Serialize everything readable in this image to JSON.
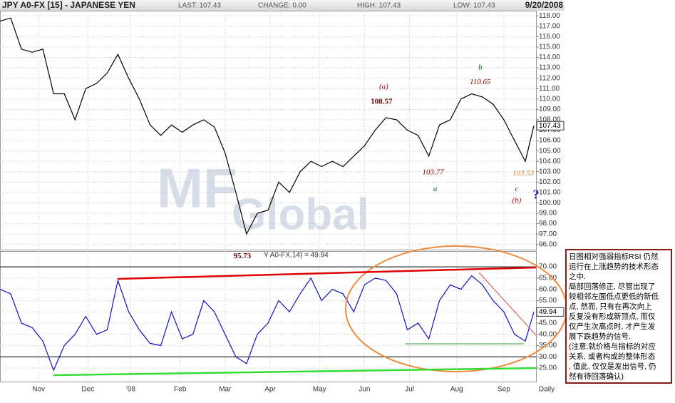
{
  "header": {
    "symbol": "JPY A0-FX [15] - JAPANESE YEN",
    "last": "LAST: 107.43",
    "change": "CHANGE: 0.00",
    "high": "HIGH: 107.43",
    "low": "LOW: 107.43",
    "date": "9/20/2008"
  },
  "note": [
    "日图相对强弱指标RSI 仍然",
    "运行在上涨趋势的技术形态",
    "之中.",
    "局部回落修正, 尽管出现了",
    "较相邻左面低点更低的新低",
    "点, 然而, 只有在再次向上",
    "反复没有形成新顶点, 而仅",
    "仅产生次高点时, 才产生发",
    "展下跌趋势的信号.",
    "(注意:就价格与指标的对应",
    "关系, 或者构成的整体形态",
    ", 值此, 仅仅是发出信号, 仍",
    "然有待回落确认)"
  ],
  "chart_data": [
    {
      "type": "line",
      "color": "#000000",
      "grid": true,
      "x": [
        0,
        5,
        10,
        15,
        20,
        25,
        30,
        35,
        40,
        45,
        50,
        55,
        60,
        65,
        70,
        75,
        80,
        85,
        90,
        95,
        100,
        105,
        110,
        115,
        120,
        125,
        130,
        135,
        140,
        145,
        150,
        155,
        160,
        165,
        170,
        175,
        180,
        185,
        190,
        195,
        200,
        205,
        210,
        215,
        220,
        225,
        230,
        235,
        240,
        245,
        249
      ],
      "values": [
        117.5,
        117.8,
        114.8,
        114.5,
        114.8,
        110.5,
        110.5,
        108,
        111,
        111.5,
        112.5,
        114.3,
        112,
        110,
        107.5,
        106.5,
        107.5,
        106.8,
        107.5,
        108,
        107.3,
        104.8,
        101,
        97,
        99,
        99.3,
        102,
        101,
        103,
        104,
        103.5,
        104,
        103.5,
        104.5,
        105.5,
        107,
        108.2,
        108,
        107,
        106.5,
        104.5,
        107.5,
        108,
        110,
        110.5,
        110.2,
        109.5,
        108,
        106,
        104,
        107.43
      ],
      "xlim": [
        0,
        250
      ],
      "ylim": [
        95.5,
        118.5
      ],
      "yticks": [
        {
          "value": 96,
          "label": "96.00"
        },
        {
          "value": 97,
          "label": "97.00"
        },
        {
          "value": 98,
          "label": "98.00"
        },
        {
          "value": 99,
          "label": "99.00"
        },
        {
          "value": 100,
          "label": "100.00"
        },
        {
          "value": 101,
          "label": "101.00"
        },
        {
          "value": 102,
          "label": "102.00"
        },
        {
          "value": 103,
          "label": "103.00"
        },
        {
          "value": 104,
          "label": "104.00"
        },
        {
          "value": 105,
          "label": "105.00"
        },
        {
          "value": 106,
          "label": "106.00"
        },
        {
          "value": 107,
          "label": "107.00"
        },
        {
          "value": 108,
          "label": "108.00"
        },
        {
          "value": 109,
          "label": "109.00"
        },
        {
          "value": 110,
          "label": "110.00"
        },
        {
          "value": 111,
          "label": "111.00"
        },
        {
          "value": 112,
          "label": "112.00"
        },
        {
          "value": 113,
          "label": "113.00"
        },
        {
          "value": 114,
          "label": "114.00"
        },
        {
          "value": 115,
          "label": "115.00"
        },
        {
          "value": 116,
          "label": "116.00"
        },
        {
          "value": 117,
          "label": "117.00"
        },
        {
          "value": 118,
          "label": "118.00"
        }
      ],
      "annotations": [
        {
          "text": "(a)",
          "x": 179,
          "y": 111.15,
          "color": "#8b0000",
          "style": "italic"
        },
        {
          "text": "108.57",
          "x": 178,
          "y": 109.7,
          "color": "#6b0000",
          "style": "bold"
        },
        {
          "text": "b",
          "x": 224,
          "y": 113,
          "color": "#006400",
          "style": "italic"
        },
        {
          "text": "110.65",
          "x": 224,
          "y": 111.6,
          "color": "#8b0000",
          "style": "italic"
        },
        {
          "text": "103.77",
          "x": 202,
          "y": 102.9,
          "color": "#8b0000",
          "style": "italic"
        },
        {
          "text": "a",
          "x": 203,
          "y": 101.3,
          "color": "#006400",
          "style": "italic"
        },
        {
          "text": "103.53",
          "x": 244,
          "y": 102.8,
          "color": "#e08030",
          "style": "italic"
        },
        {
          "text": "c",
          "x": 241,
          "y": 101.3,
          "color": "#006400",
          "style": "italic"
        },
        {
          "text": "(b)",
          "x": 241,
          "y": 100.2,
          "color": "#cc0000",
          "style": "italic"
        },
        {
          "text": "?",
          "x": 250,
          "y": 100.7,
          "color": "#1a1aa0",
          "style": "bold"
        },
        {
          "text": "95.73",
          "x": 113,
          "y": 94.85,
          "color": "#6b0000",
          "style": "bold"
        }
      ]
    },
    {
      "type": "line",
      "title": "Y A0-FX,14) = 49.94",
      "color": "#1010c0",
      "grid": true,
      "x": [
        0,
        5,
        10,
        15,
        20,
        25,
        30,
        35,
        40,
        45,
        50,
        55,
        60,
        65,
        70,
        75,
        80,
        85,
        90,
        95,
        100,
        105,
        110,
        115,
        120,
        125,
        130,
        135,
        140,
        145,
        150,
        155,
        160,
        165,
        170,
        175,
        180,
        185,
        190,
        195,
        200,
        205,
        210,
        215,
        220,
        225,
        230,
        235,
        240,
        245,
        249
      ],
      "values": [
        60,
        58,
        45,
        43,
        37,
        24,
        35,
        40,
        48,
        40,
        42,
        64,
        50,
        42,
        36,
        35,
        50,
        38,
        40,
        55,
        50,
        40,
        30,
        27,
        40,
        45,
        55,
        50,
        58,
        65,
        55,
        60,
        58,
        50,
        62,
        65,
        64,
        58,
        42,
        45,
        38,
        55,
        62,
        60,
        66,
        62,
        55,
        50,
        40,
        37,
        49.94
      ],
      "xlim": [
        0,
        250
      ],
      "ylim": [
        19,
        77
      ],
      "yticks": [
        {
          "value": 25,
          "label": "25.00"
        },
        {
          "value": 30,
          "label": "30.00"
        },
        {
          "value": 35,
          "label": "35.00"
        },
        {
          "value": 40,
          "label": "40.00"
        },
        {
          "value": 45,
          "label": "45.00"
        },
        {
          "value": 50,
          "label": "50.00"
        },
        {
          "value": 55,
          "label": "55.00"
        },
        {
          "value": 60,
          "label": "60.00"
        },
        {
          "value": 65,
          "label": "65.00"
        },
        {
          "value": 70,
          "label": "70.00"
        }
      ],
      "xticks": [
        {
          "value": 18,
          "label": "Nov"
        },
        {
          "value": 41,
          "label": "Dec"
        },
        {
          "value": 61,
          "label": "'08"
        },
        {
          "value": 84,
          "label": "Feb"
        },
        {
          "value": 105,
          "label": "Mar"
        },
        {
          "value": 126,
          "label": "Apr"
        },
        {
          "value": 149,
          "label": "May"
        },
        {
          "value": 170,
          "label": "Jun"
        },
        {
          "value": 191,
          "label": "Jul"
        },
        {
          "value": 213,
          "label": "Aug"
        },
        {
          "value": 235,
          "label": "Sep"
        },
        {
          "value": 255,
          "label": "Daily"
        }
      ]
    }
  ]
}
